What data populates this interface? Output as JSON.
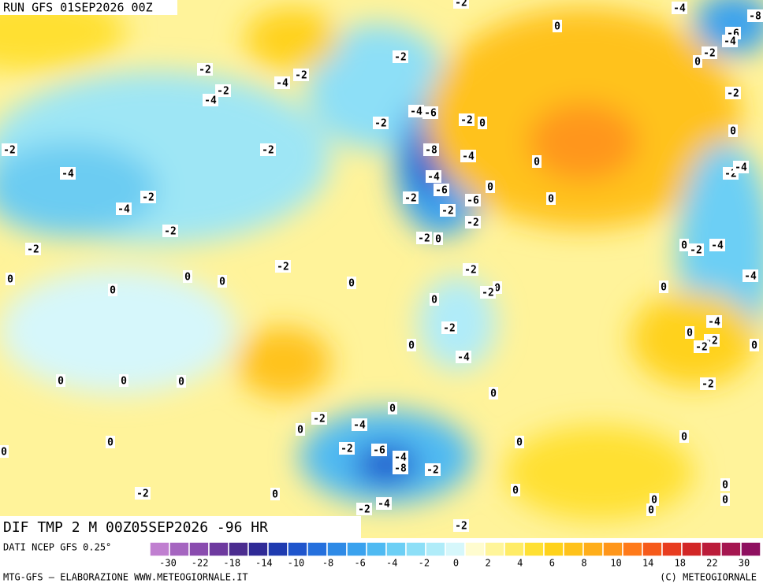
{
  "header": {
    "run": "RUN GFS 01SEP2026 00Z"
  },
  "footer": {
    "title": "DIF TMP 2 M 00Z05SEP2026 -96 HR",
    "source": "DATI NCEP GFS 0.25°",
    "credit": "MTG-GFS — ELABORAZIONE WWW.METEOGIORNALE.IT",
    "copyright": "(C) METEOGIORNALE"
  },
  "colorbar": {
    "ticks": [
      -30,
      -22,
      -18,
      -14,
      -10,
      -8,
      -6,
      -4,
      -2,
      0,
      2,
      4,
      6,
      8,
      10,
      14,
      18,
      22,
      30
    ],
    "colors": [
      "#c07fd0",
      "#a565c0",
      "#8a4caf",
      "#6e3a9f",
      "#4b2c8f",
      "#2f2a96",
      "#1f3bb0",
      "#1f55cc",
      "#2570dd",
      "#2e8ae6",
      "#3aa2ee",
      "#4fbaf2",
      "#6ccff5",
      "#8ddff7",
      "#b0ecf9",
      "#d6f7fb",
      "#fffccf",
      "#fff59a",
      "#ffec66",
      "#ffe033",
      "#ffd21a",
      "#ffc21a",
      "#ffae1a",
      "#ff961a",
      "#ff7a1a",
      "#f65a1a",
      "#e83c1f",
      "#d22626",
      "#bb1c3a",
      "#a51650",
      "#8f1060"
    ]
  },
  "map": {
    "contour_labels": [
      -2,
      -4,
      -8,
      -6,
      -4,
      0,
      -2,
      0,
      -2,
      -4,
      -2,
      -2,
      -2,
      -4,
      -2,
      -2,
      -4,
      -6,
      -2,
      0,
      0,
      -2,
      -2,
      -8,
      -4,
      0,
      -2,
      -4,
      -4,
      -4,
      -6,
      0,
      -2,
      -4,
      -2,
      -2,
      -6,
      0,
      -2,
      -2,
      -2,
      -2,
      0,
      -2,
      -4,
      0,
      -2,
      0,
      0,
      0,
      -2,
      -4,
      0,
      0,
      0,
      -2,
      0,
      0,
      -4,
      -2,
      0,
      -2,
      -2,
      0,
      0,
      -4,
      0,
      0,
      0,
      0,
      -2,
      0,
      -2,
      -4,
      0,
      0,
      0,
      -2,
      -6,
      -4,
      0,
      -8,
      -2,
      0,
      -2,
      0,
      0,
      0,
      0,
      0,
      0,
      -2,
      -4,
      -2
    ]
  }
}
